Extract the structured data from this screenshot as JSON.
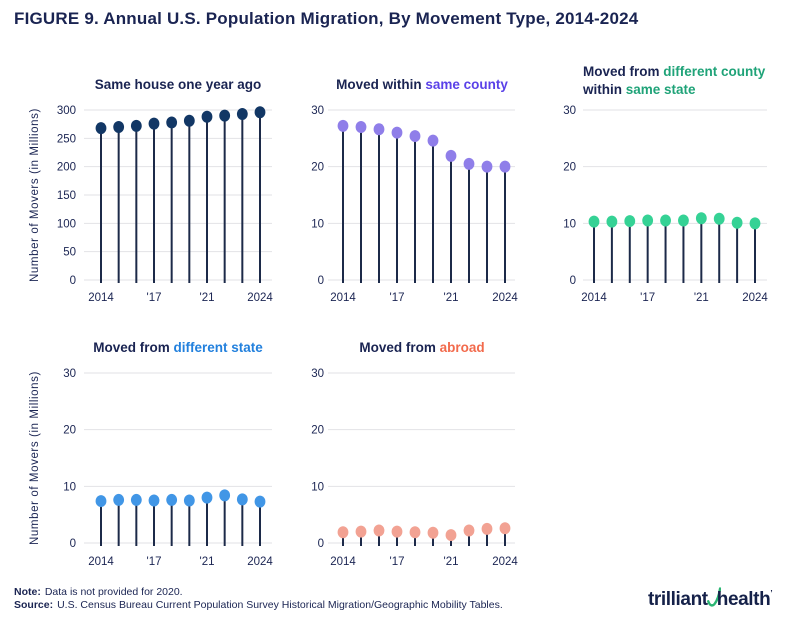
{
  "figure": {
    "title": "FIGURE 9. Annual U.S. Population Migration, By Movement Type, 2014-2024"
  },
  "colors": {
    "navy_text": "#1A2452",
    "stem": "#1C2A49",
    "grid": "#E2E2E6",
    "axis_label": "#1A2452"
  },
  "chart_data": [
    {
      "type": "scatter",
      "style": "lollipop-stem",
      "title": "Same house one year ago",
      "title_lines": [
        [
          {
            "text": "Same house one year ago",
            "color": "#1A2452"
          }
        ]
      ],
      "ylabel": "Number of Movers (in Millions)",
      "categories": [
        2014,
        2015,
        2016,
        2017,
        2018,
        2019,
        2021,
        2022,
        2023,
        2024
      ],
      "values": [
        268,
        270,
        272,
        276,
        278,
        281,
        288,
        290,
        293,
        296
      ],
      "ylim": [
        0,
        300
      ],
      "yticks": [
        0,
        50,
        100,
        150,
        200,
        250,
        300
      ],
      "x_ticks": [
        {
          "year": 2014,
          "label": "2014"
        },
        {
          "year": 2017,
          "label": "'17"
        },
        {
          "year": 2021,
          "label": "'21"
        },
        {
          "year": 2024,
          "label": "2024"
        }
      ],
      "dot_color": "#123765",
      "grid_on": true
    },
    {
      "type": "scatter",
      "style": "lollipop-stem",
      "title": "Moved within same county",
      "title_lines": [
        [
          {
            "text": "Moved within ",
            "color": "#1A2452"
          },
          {
            "text": "same county",
            "color": "#5A41E8"
          }
        ]
      ],
      "ylabel": "",
      "categories": [
        2014,
        2015,
        2016,
        2017,
        2018,
        2019,
        2021,
        2022,
        2023,
        2024
      ],
      "values": [
        27.2,
        27.0,
        26.6,
        26.0,
        25.4,
        24.6,
        21.9,
        20.5,
        20.0,
        20.0
      ],
      "ylim": [
        0,
        30
      ],
      "yticks": [
        0,
        10,
        20,
        30
      ],
      "x_ticks": [
        {
          "year": 2014,
          "label": "2014"
        },
        {
          "year": 2017,
          "label": "'17"
        },
        {
          "year": 2021,
          "label": "'21"
        },
        {
          "year": 2024,
          "label": "2024"
        }
      ],
      "dot_color": "#8F7EE9",
      "grid_on": true
    },
    {
      "type": "scatter",
      "style": "lollipop-stem",
      "title": "Moved from different county within same state",
      "title_lines": [
        [
          {
            "text": "Moved from ",
            "color": "#1A2452"
          },
          {
            "text": "different county",
            "color": "#1FA378"
          }
        ],
        [
          {
            "text": "within ",
            "color": "#1A2452"
          },
          {
            "text": "same state",
            "color": "#1FA378"
          }
        ]
      ],
      "ylabel": "",
      "categories": [
        2014,
        2015,
        2016,
        2017,
        2018,
        2019,
        2021,
        2022,
        2023,
        2024
      ],
      "values": [
        10.3,
        10.3,
        10.4,
        10.5,
        10.5,
        10.5,
        10.9,
        10.8,
        10.1,
        10.0
      ],
      "ylim": [
        0,
        30
      ],
      "yticks": [
        0,
        10,
        20,
        30
      ],
      "x_ticks": [
        {
          "year": 2014,
          "label": "2014"
        },
        {
          "year": 2017,
          "label": "'17"
        },
        {
          "year": 2021,
          "label": "'21"
        },
        {
          "year": 2024,
          "label": "2024"
        }
      ],
      "dot_color": "#35D295",
      "grid_on": true
    },
    {
      "type": "scatter",
      "style": "lollipop-stem",
      "title": "Moved from different state",
      "title_lines": [
        [
          {
            "text": "Moved from ",
            "color": "#1A2452"
          },
          {
            "text": "different state",
            "color": "#2280DD"
          }
        ]
      ],
      "ylabel": "Number of Movers (in Millions)",
      "categories": [
        2014,
        2015,
        2016,
        2017,
        2018,
        2019,
        2021,
        2022,
        2023,
        2024
      ],
      "values": [
        7.4,
        7.6,
        7.6,
        7.5,
        7.6,
        7.5,
        8.0,
        8.4,
        7.7,
        7.3
      ],
      "ylim": [
        0,
        30
      ],
      "yticks": [
        0,
        10,
        20,
        30
      ],
      "x_ticks": [
        {
          "year": 2014,
          "label": "2014"
        },
        {
          "year": 2017,
          "label": "'17"
        },
        {
          "year": 2021,
          "label": "'21"
        },
        {
          "year": 2024,
          "label": "2024"
        }
      ],
      "dot_color": "#4196E6",
      "grid_on": true
    },
    {
      "type": "scatter",
      "style": "lollipop-stem",
      "title": "Moved from abroad",
      "title_lines": [
        [
          {
            "text": "Moved from ",
            "color": "#1A2452"
          },
          {
            "text": "abroad",
            "color": "#F26A4C"
          }
        ]
      ],
      "ylabel": "",
      "categories": [
        2014,
        2015,
        2016,
        2017,
        2018,
        2019,
        2021,
        2022,
        2023,
        2024
      ],
      "values": [
        1.9,
        2.0,
        2.2,
        2.0,
        1.9,
        1.8,
        1.4,
        2.2,
        2.5,
        2.6
      ],
      "ylim": [
        0,
        30
      ],
      "yticks": [
        0,
        10,
        20,
        30
      ],
      "x_ticks": [
        {
          "year": 2014,
          "label": "2014"
        },
        {
          "year": 2017,
          "label": "'17"
        },
        {
          "year": 2021,
          "label": "'21"
        },
        {
          "year": 2024,
          "label": "2024"
        }
      ],
      "dot_color": "#F2A293",
      "grid_on": true
    }
  ],
  "footer": {
    "note_label": "Note:",
    "note_text": "Data is not provided for 2020.",
    "source_label": "Source:",
    "source_text": "U.S. Census Bureau Current Population Survey Historical Migration/Geographic Mobility Tables."
  },
  "logo": {
    "word1": "trilliant",
    "word2": "health",
    "mark": "’",
    "text_color": "#152149",
    "swoosh_color": "#2BB673"
  }
}
